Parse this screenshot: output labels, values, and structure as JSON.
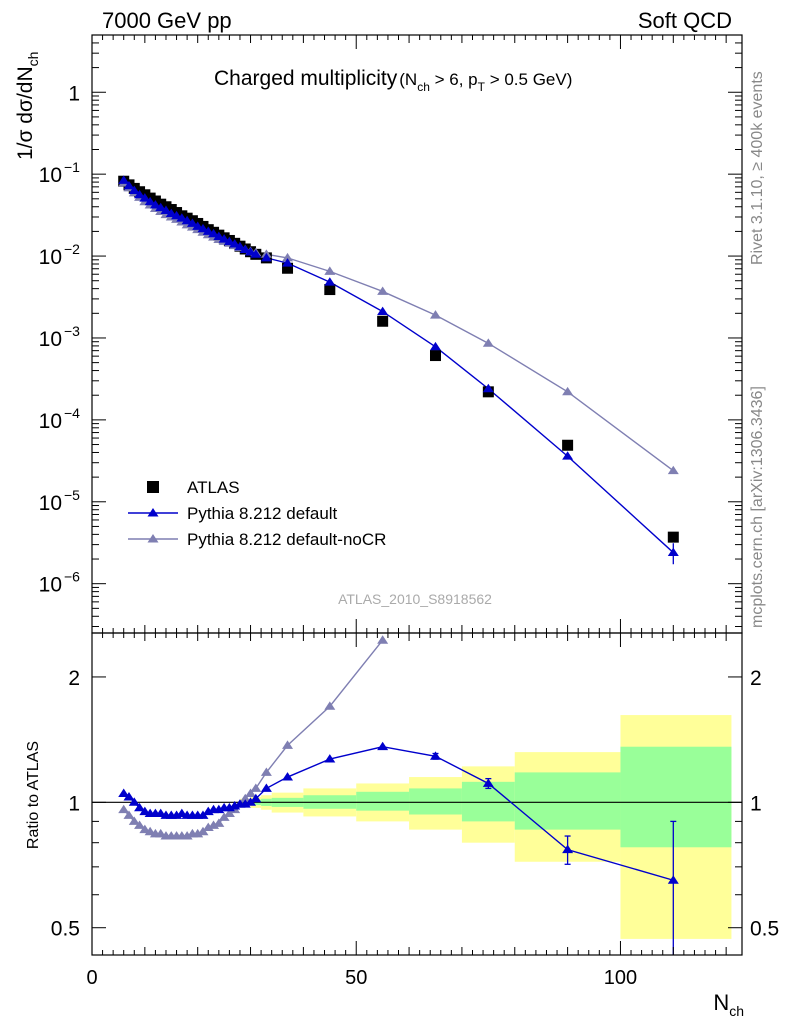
{
  "header": {
    "left": "7000 GeV pp",
    "right": "Soft QCD"
  },
  "side_labels": {
    "rivet": "Rivet 3.1.10, ≥ 400k events",
    "mcplots": "mcplots.cern.ch [arXiv:1306.3436]"
  },
  "analysis_id": "ATLAS_2010_S8918562",
  "chart_data": [
    {
      "type": "scatter",
      "panel": "main",
      "title": "Charged multiplicity",
      "title_condition": {
        "main": "(N",
        "sub1": "ch",
        "mid": " > 6, p",
        "sub2": "T",
        "tail": " > 0.5 GeV)"
      },
      "ylabel": {
        "main": "1/σ dσ/dN",
        "sub": "ch"
      },
      "yscale": "log",
      "ylim": [
        2.5e-07,
        5.0
      ],
      "xlim": [
        0,
        123
      ],
      "ytick_labels": [
        {
          "v": 1e-06,
          "base": "10",
          "exp": "−6"
        },
        {
          "v": 1e-05,
          "base": "10",
          "exp": "−5"
        },
        {
          "v": 0.0001,
          "base": "10",
          "exp": "−4"
        },
        {
          "v": 0.001,
          "base": "10",
          "exp": "−3"
        },
        {
          "v": 0.01,
          "base": "10",
          "exp": "−2"
        },
        {
          "v": 0.1,
          "base": "10",
          "exp": "−1"
        },
        {
          "v": 1,
          "base": "1",
          "exp": ""
        }
      ],
      "legend_position": "bottom-left",
      "series": [
        {
          "name": "ATLAS",
          "style": "square",
          "color": "#000000",
          "x": [
            6,
            7,
            8,
            9,
            10,
            11,
            12,
            13,
            14,
            15,
            16,
            17,
            18,
            19,
            20,
            21,
            22,
            23,
            24,
            25,
            26,
            27,
            28,
            29,
            30,
            31,
            33,
            37,
            45,
            55,
            65,
            75,
            90,
            110
          ],
          "y": [
            0.082,
            0.074,
            0.067,
            0.061,
            0.056,
            0.051,
            0.047,
            0.043,
            0.04,
            0.037,
            0.034,
            0.031,
            0.029,
            0.027,
            0.025,
            0.023,
            0.021,
            0.0195,
            0.018,
            0.0167,
            0.0155,
            0.0143,
            0.0132,
            0.0122,
            0.0113,
            0.0105,
            0.0095,
            0.0071,
            0.0039,
            0.0016,
            0.00061,
            0.00022,
            4.9e-05,
            3.7e-06
          ]
        },
        {
          "name": "Pythia 8.212 default",
          "style": "triangle",
          "color": "#0000cc",
          "x": [
            6,
            7,
            8,
            9,
            10,
            11,
            12,
            13,
            14,
            15,
            16,
            17,
            18,
            19,
            20,
            21,
            22,
            23,
            24,
            25,
            26,
            27,
            28,
            29,
            30,
            31,
            33,
            37,
            45,
            55,
            65,
            75,
            90,
            110
          ],
          "y": [
            0.084,
            0.072,
            0.063,
            0.056,
            0.051,
            0.046,
            0.042,
            0.039,
            0.036,
            0.033,
            0.031,
            0.029,
            0.027,
            0.025,
            0.023,
            0.0215,
            0.02,
            0.0187,
            0.0173,
            0.0161,
            0.015,
            0.014,
            0.013,
            0.012,
            0.0112,
            0.0105,
            0.0095,
            0.0082,
            0.0048,
            0.0021,
            0.00078,
            0.00024,
            3.6e-05,
            2.4e-06
          ]
        },
        {
          "name": "Pythia 8.212 default-noCR",
          "style": "triangle",
          "color": "#7f7fb2",
          "x": [
            6,
            7,
            8,
            9,
            10,
            11,
            12,
            13,
            14,
            15,
            16,
            17,
            18,
            19,
            20,
            21,
            22,
            23,
            24,
            25,
            26,
            27,
            28,
            29,
            30,
            31,
            33,
            37,
            45,
            55,
            65,
            75,
            90,
            110
          ],
          "y": [
            0.078,
            0.068,
            0.059,
            0.052,
            0.046,
            0.042,
            0.038,
            0.035,
            0.032,
            0.03,
            0.028,
            0.026,
            0.024,
            0.0225,
            0.021,
            0.0195,
            0.0182,
            0.017,
            0.0159,
            0.0151,
            0.0143,
            0.0134,
            0.0127,
            0.012,
            0.0114,
            0.011,
            0.0105,
            0.0095,
            0.0065,
            0.0037,
            0.0019,
            0.00086,
            0.00022,
            2.4e-05
          ]
        }
      ],
      "legend": [
        {
          "label": "ATLAS",
          "style": "square",
          "color": "#000000"
        },
        {
          "label": "Pythia 8.212 default",
          "style": "triangle",
          "color": "#0000cc"
        },
        {
          "label": "Pythia 8.212 default-noCR",
          "style": "triangle",
          "color": "#7f7fb2"
        }
      ]
    },
    {
      "type": "line",
      "panel": "ratio",
      "ylabel": "Ratio to ATLAS",
      "xlabel": {
        "main": "N",
        "sub": "ch"
      },
      "yscale": "log",
      "ylim": [
        0.43,
        2.55
      ],
      "xlim": [
        0,
        123
      ],
      "xtick_labels": [
        {
          "v": 0,
          "label": "0"
        },
        {
          "v": 50,
          "label": "50"
        },
        {
          "v": 100,
          "label": "100"
        }
      ],
      "ytick_labels": [
        {
          "v": 0.5,
          "label": "0.5"
        },
        {
          "v": 1,
          "label": "1"
        },
        {
          "v": 2,
          "label": "2"
        }
      ],
      "bands": {
        "yellow_color": "#ffff99",
        "green_color": "#99ff99",
        "bins": [
          {
            "x0": 28,
            "x1": 30,
            "yl": 0.98,
            "yh": 1.02,
            "gl": 0.99,
            "gh": 1.01
          },
          {
            "x0": 30,
            "x1": 32,
            "yl": 0.97,
            "yh": 1.03,
            "gl": 0.985,
            "gh": 1.015
          },
          {
            "x0": 32,
            "x1": 34,
            "yl": 0.96,
            "yh": 1.04,
            "gl": 0.98,
            "gh": 1.02
          },
          {
            "x0": 34,
            "x1": 40,
            "yl": 0.945,
            "yh": 1.055,
            "gl": 0.975,
            "gh": 1.025
          },
          {
            "x0": 40,
            "x1": 50,
            "yl": 0.925,
            "yh": 1.08,
            "gl": 0.965,
            "gh": 1.04
          },
          {
            "x0": 50,
            "x1": 60,
            "yl": 0.9,
            "yh": 1.11,
            "gl": 0.955,
            "gh": 1.06
          },
          {
            "x0": 60,
            "x1": 70,
            "yl": 0.86,
            "yh": 1.15,
            "gl": 0.935,
            "gh": 1.08
          },
          {
            "x0": 70,
            "x1": 80,
            "yl": 0.8,
            "yh": 1.22,
            "gl": 0.9,
            "gh": 1.12
          },
          {
            "x0": 80,
            "x1": 100,
            "yl": 0.72,
            "yh": 1.32,
            "gl": 0.86,
            "gh": 1.18
          },
          {
            "x0": 100,
            "x1": 121,
            "yl": 0.47,
            "yh": 1.62,
            "gl": 0.78,
            "gh": 1.36
          }
        ]
      },
      "series": [
        {
          "name": "Pythia 8.212 default",
          "style": "triangle",
          "color": "#0000cc",
          "x": [
            6,
            7,
            8,
            9,
            10,
            11,
            12,
            13,
            14,
            15,
            16,
            17,
            18,
            19,
            20,
            21,
            22,
            23,
            24,
            25,
            26,
            27,
            28,
            29,
            30,
            31,
            33,
            37,
            45,
            55,
            65,
            75,
            90,
            110
          ],
          "y": [
            1.05,
            1.03,
            1.0,
            0.97,
            0.95,
            0.94,
            0.94,
            0.94,
            0.93,
            0.93,
            0.93,
            0.94,
            0.93,
            0.93,
            0.93,
            0.93,
            0.95,
            0.96,
            0.96,
            0.97,
            0.97,
            0.98,
            0.99,
            0.99,
            1.0,
            1.02,
            1.08,
            1.15,
            1.27,
            1.36,
            1.29,
            1.11,
            0.77,
            0.65
          ],
          "err": [
            0,
            0,
            0,
            0,
            0,
            0,
            0,
            0,
            0,
            0,
            0,
            0,
            0,
            0,
            0,
            0,
            0,
            0,
            0,
            0,
            0,
            0,
            0,
            0,
            0,
            0,
            0,
            0,
            0,
            0,
            0.02,
            0.03,
            0.06,
            0.25
          ]
        },
        {
          "name": "Pythia 8.212 default-noCR",
          "style": "triangle",
          "color": "#7f7fb2",
          "x": [
            6,
            7,
            8,
            9,
            10,
            11,
            12,
            13,
            14,
            15,
            16,
            17,
            18,
            19,
            20,
            21,
            22,
            23,
            24,
            25,
            26,
            27,
            28,
            29,
            30,
            31,
            33,
            37,
            45,
            55
          ],
          "y": [
            0.96,
            0.93,
            0.9,
            0.88,
            0.86,
            0.85,
            0.84,
            0.84,
            0.83,
            0.83,
            0.83,
            0.83,
            0.83,
            0.84,
            0.84,
            0.85,
            0.87,
            0.88,
            0.89,
            0.92,
            0.94,
            0.96,
            0.99,
            1.02,
            1.05,
            1.08,
            1.18,
            1.37,
            1.7,
            2.45
          ],
          "err": [
            0,
            0,
            0,
            0,
            0,
            0,
            0,
            0,
            0,
            0,
            0,
            0,
            0,
            0,
            0,
            0,
            0,
            0,
            0,
            0,
            0,
            0,
            0,
            0,
            0,
            0,
            0,
            0,
            0,
            0
          ]
        }
      ]
    }
  ]
}
